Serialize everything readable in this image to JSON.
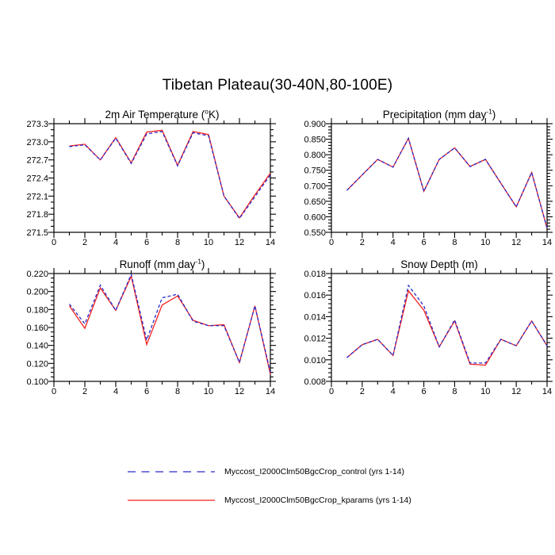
{
  "title": "Tibetan Plateau(30-40N,80-100E)",
  "colors": {
    "control": "#2929cc",
    "kparams": "#f42020",
    "axis": "#000000",
    "background": "#ffffff"
  },
  "legend": {
    "items": [
      {
        "name": "control",
        "label": "Myccost_I2000Clm50BgcCrop_control (yrs 1-14)",
        "color": "#2929cc",
        "dash": "10,7.5"
      },
      {
        "name": "kparams",
        "label": "Myccost_I2000Clm50BgcCrop_kparams (yrs 1-14)",
        "color": "#f42020",
        "dash": ""
      }
    ]
  },
  "chart_data": [
    {
      "type": "line",
      "slug": "air-temperature",
      "title": "2m Air Temperature (oK)",
      "title_parts": {
        "pre": "2m Air Temperature (",
        "sup": "o",
        "post": "K)"
      },
      "x": [
        1,
        2,
        3,
        4,
        5,
        6,
        7,
        8,
        9,
        10,
        11,
        12,
        13,
        14
      ],
      "xlim": [
        0,
        14
      ],
      "xticks": [
        0,
        2,
        4,
        6,
        8,
        10,
        12,
        14
      ],
      "xtick_labels": [
        "0",
        "2",
        "4",
        "6",
        "8",
        "10",
        "12",
        "14"
      ],
      "x_minor_step": 1,
      "ylim": [
        271.5,
        273.3
      ],
      "ytick_values": [
        271.5,
        271.8,
        272.1,
        272.4,
        272.7,
        273.0,
        273.3
      ],
      "ytick_labels": [
        "271.5",
        "271.8",
        "272.1",
        "272.4",
        "272.7",
        "273.0",
        "273.3"
      ],
      "y_minor_step": 0.1,
      "grid": false,
      "series": [
        {
          "name": "kparams",
          "color": "#f42020",
          "dash": "",
          "values": [
            272.93,
            272.96,
            272.7,
            273.07,
            272.65,
            273.16,
            273.19,
            272.61,
            273.17,
            273.12,
            272.1,
            271.74,
            272.12,
            272.48
          ]
        },
        {
          "name": "control",
          "color": "#2929cc",
          "dash": "4,2.8",
          "values": [
            272.92,
            272.95,
            272.7,
            273.06,
            272.64,
            273.13,
            273.17,
            272.6,
            273.15,
            273.1,
            272.1,
            271.73,
            272.09,
            272.45
          ]
        }
      ]
    },
    {
      "type": "line",
      "slug": "precipitation",
      "title": "Precipitation (mm day-1)",
      "title_parts": {
        "pre": "Precipitation (mm day",
        "sup": "-1",
        "post": ")"
      },
      "x": [
        1,
        2,
        3,
        4,
        5,
        6,
        7,
        8,
        9,
        10,
        11,
        12,
        13,
        14
      ],
      "xlim": [
        0,
        14
      ],
      "xticks": [
        0,
        2,
        4,
        6,
        8,
        10,
        12,
        14
      ],
      "xtick_labels": [
        "0",
        "2",
        "4",
        "6",
        "8",
        "10",
        "12",
        "14"
      ],
      "x_minor_step": 1,
      "ylim": [
        0.55,
        0.9
      ],
      "ytick_values": [
        0.55,
        0.6,
        0.65,
        0.7,
        0.75,
        0.8,
        0.85,
        0.9
      ],
      "ytick_labels": [
        "0.550",
        "0.600",
        "0.650",
        "0.700",
        "0.750",
        "0.800",
        "0.850",
        "0.900"
      ],
      "y_minor_step": 0.01,
      "grid": false,
      "series": [
        {
          "name": "kparams",
          "color": "#f42020",
          "dash": "",
          "values": [
            0.685,
            0.735,
            0.785,
            0.76,
            0.853,
            0.682,
            0.785,
            0.822,
            0.762,
            0.785,
            0.708,
            0.632,
            0.743,
            0.563
          ]
        },
        {
          "name": "control",
          "color": "#2929cc",
          "dash": "4,2.8",
          "values": [
            0.685,
            0.735,
            0.785,
            0.76,
            0.853,
            0.682,
            0.785,
            0.822,
            0.762,
            0.785,
            0.708,
            0.632,
            0.743,
            0.563
          ]
        }
      ]
    },
    {
      "type": "line",
      "slug": "runoff",
      "title": "Runoff (mm day-1)",
      "title_parts": {
        "pre": "Runoff (mm day",
        "sup": "-1",
        "post": ")"
      },
      "x": [
        1,
        2,
        3,
        4,
        5,
        6,
        7,
        8,
        9,
        10,
        11,
        12,
        13,
        14
      ],
      "xlim": [
        0,
        14
      ],
      "xticks": [
        0,
        2,
        4,
        6,
        8,
        10,
        12,
        14
      ],
      "xtick_labels": [
        "0",
        "2",
        "4",
        "6",
        "8",
        "10",
        "12",
        "14"
      ],
      "x_minor_step": 1,
      "ylim": [
        0.1,
        0.22
      ],
      "ytick_values": [
        0.1,
        0.12,
        0.14,
        0.16,
        0.18,
        0.2,
        0.22
      ],
      "ytick_labels": [
        "0.100",
        "0.120",
        "0.140",
        "0.160",
        "0.180",
        "0.200",
        "0.220"
      ],
      "y_minor_step": 0.005,
      "grid": false,
      "series": [
        {
          "name": "kparams",
          "color": "#f42020",
          "dash": "",
          "values": [
            0.184,
            0.159,
            0.204,
            0.179,
            0.217,
            0.141,
            0.185,
            0.195,
            0.168,
            0.162,
            0.163,
            0.121,
            0.184,
            0.108
          ]
        },
        {
          "name": "control",
          "color": "#2929cc",
          "dash": "4,2.8",
          "values": [
            0.186,
            0.164,
            0.207,
            0.179,
            0.219,
            0.146,
            0.193,
            0.197,
            0.167,
            0.162,
            0.162,
            0.121,
            0.184,
            0.11
          ]
        }
      ]
    },
    {
      "type": "line",
      "slug": "snow-depth",
      "title": "Snow Depth (m)",
      "title_parts": {
        "pre": "Snow Depth (m)",
        "sup": "",
        "post": ""
      },
      "x": [
        1,
        2,
        3,
        4,
        5,
        6,
        7,
        8,
        9,
        10,
        11,
        12,
        13,
        14
      ],
      "xlim": [
        0,
        14
      ],
      "xticks": [
        0,
        2,
        4,
        6,
        8,
        10,
        12,
        14
      ],
      "xtick_labels": [
        "0",
        "2",
        "4",
        "6",
        "8",
        "10",
        "12",
        "14"
      ],
      "x_minor_step": 1,
      "ylim": [
        0.008,
        0.018
      ],
      "ytick_values": [
        0.008,
        0.01,
        0.012,
        0.014,
        0.016,
        0.018
      ],
      "ytick_labels": [
        "0.008",
        "0.010",
        "0.012",
        "0.014",
        "0.016",
        "0.018"
      ],
      "y_minor_step": 0.0004,
      "grid": false,
      "series": [
        {
          "name": "kparams",
          "color": "#f42020",
          "dash": "",
          "values": [
            0.0102,
            0.0114,
            0.0119,
            0.0104,
            0.0164,
            0.0146,
            0.0112,
            0.0136,
            0.0096,
            0.0095,
            0.0119,
            0.0113,
            0.0136,
            0.0113
          ]
        },
        {
          "name": "control",
          "color": "#2929cc",
          "dash": "4,2.8",
          "values": [
            0.0102,
            0.0114,
            0.0119,
            0.0104,
            0.0169,
            0.015,
            0.0112,
            0.0137,
            0.0097,
            0.0097,
            0.0119,
            0.0113,
            0.0136,
            0.0113
          ]
        }
      ]
    }
  ]
}
